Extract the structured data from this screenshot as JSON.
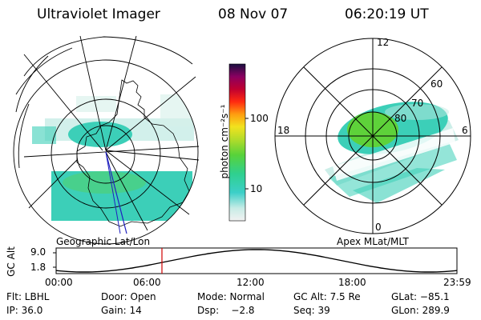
{
  "header": {
    "instrument": "Ultraviolet Imager",
    "date": "08 Nov 07",
    "time": "06:20:19 UT"
  },
  "left_panel": {
    "caption": "Geographic Lat/Lon"
  },
  "right_panel": {
    "caption": "Apex MLat/MLT",
    "mlt_labels": {
      "top": "12",
      "left": "18",
      "right": "6",
      "bottom": "0"
    },
    "lat_labels": [
      "60",
      "70",
      "80"
    ]
  },
  "colorbar": {
    "unit_label": "photon cm⁻²s⁻¹",
    "tick_labels": [
      "100",
      "10"
    ]
  },
  "timeline": {
    "ylabel": "GC Alt",
    "y_ticks": [
      "9.0",
      "1.8"
    ],
    "x_ticks": [
      "00:00",
      "06:00",
      "12:00",
      "18:00",
      "23:59"
    ],
    "current_time_fraction": 0.264
  },
  "info": {
    "flt": "Flt: LBHL",
    "door": "Door: Open",
    "mode": "Mode: Normal",
    "gc_alt": "GC Alt: 7.5 Re",
    "glat": "GLat: −85.1",
    "ip": "IP: 36.0",
    "gain": "Gain: 14",
    "dsp": "Dsp:    −2.8",
    "seq": "Seq: 39",
    "glon": "GLon: 289.9"
  },
  "colors": {
    "aurora_main": "#3ccfb8",
    "aurora_core": "#5ed23a",
    "aurora_faint": "#bfeae2",
    "marker": "#d00000",
    "meridian": "#2020c0"
  }
}
